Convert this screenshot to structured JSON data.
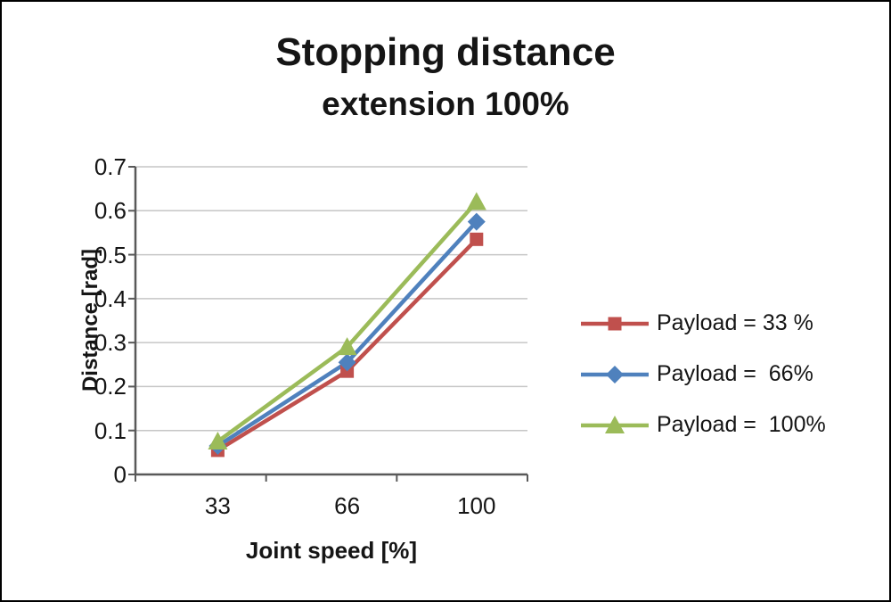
{
  "chart_data": {
    "type": "line",
    "title": "Stopping distance",
    "subtitle": "extension 100%",
    "xlabel": "Joint speed [%]",
    "ylabel": "Distance [rad]",
    "categories": [
      "33",
      "66",
      "100"
    ],
    "y_tick_labels": [
      "0.7",
      "0.6",
      "0.5",
      "0.4",
      "0.3",
      "0.2",
      "0.1",
      "0"
    ],
    "ylim": [
      0,
      0.7
    ],
    "grid": true,
    "legend_position": "right",
    "axis_color": "#595959",
    "grid_color": "#c6c6c6",
    "series": [
      {
        "name": "Payload = 33 %",
        "marker": "square",
        "color": "#C0504D",
        "values": [
          0.055,
          0.235,
          0.535
        ]
      },
      {
        "name": "Payload =  66%",
        "marker": "diamond",
        "color": "#4F81BD",
        "values": [
          0.065,
          0.255,
          0.575
        ]
      },
      {
        "name": "Payload =  100%",
        "marker": "triangle",
        "color": "#9BBB59",
        "values": [
          0.075,
          0.29,
          0.62
        ]
      }
    ]
  }
}
